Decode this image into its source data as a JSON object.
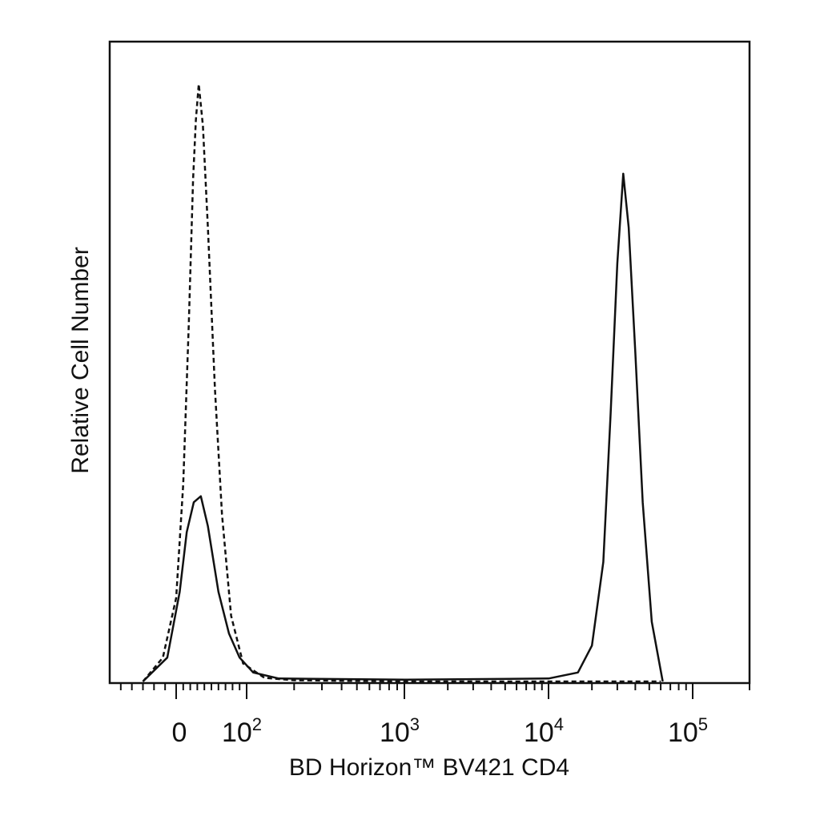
{
  "chart_data": {
    "type": "line",
    "title": "",
    "xlabel": "BD Horizon™ BV421 CD4",
    "ylabel": "Relative Cell Number",
    "x_scale": "biexponential",
    "xlim": [
      -60,
      200000
    ],
    "ylim": [
      0,
      100
    ],
    "grid": false,
    "legend": "none",
    "x_tick_labels": [
      {
        "value": 0,
        "base": "0",
        "exp": ""
      },
      {
        "value": 100,
        "base": "10",
        "exp": "2"
      },
      {
        "value": 1000,
        "base": "10",
        "exp": "3"
      },
      {
        "value": 10000,
        "base": "10",
        "exp": "4"
      },
      {
        "value": 100000,
        "base": "10",
        "exp": "5"
      }
    ],
    "series": [
      {
        "style": "dashed",
        "color": "#111111",
        "points": [
          [
            -30,
            0
          ],
          [
            -12,
            4
          ],
          [
            0,
            14
          ],
          [
            10,
            33
          ],
          [
            18,
            60
          ],
          [
            24,
            84
          ],
          [
            28,
            94
          ],
          [
            32,
            100
          ],
          [
            38,
            93
          ],
          [
            45,
            76
          ],
          [
            55,
            49
          ],
          [
            65,
            28
          ],
          [
            78,
            11
          ],
          [
            95,
            3
          ],
          [
            130,
            0.6
          ],
          [
            200,
            0.2
          ],
          [
            1000,
            0
          ],
          [
            30000,
            0
          ],
          [
            60000,
            0
          ]
        ]
      },
      {
        "style": "solid",
        "color": "#111111",
        "points": [
          [
            -30,
            0
          ],
          [
            -8,
            4
          ],
          [
            5,
            15
          ],
          [
            15,
            25
          ],
          [
            25,
            30
          ],
          [
            35,
            31
          ],
          [
            45,
            26
          ],
          [
            60,
            15
          ],
          [
            75,
            8
          ],
          [
            90,
            4
          ],
          [
            110,
            1.5
          ],
          [
            160,
            0.5
          ],
          [
            1000,
            0.3
          ],
          [
            10000,
            0.5
          ],
          [
            16000,
            1.5
          ],
          [
            20000,
            6
          ],
          [
            24000,
            20
          ],
          [
            27000,
            45
          ],
          [
            30000,
            70
          ],
          [
            33000,
            85
          ],
          [
            36000,
            76
          ],
          [
            40000,
            55
          ],
          [
            45000,
            30
          ],
          [
            52000,
            10
          ],
          [
            62000,
            0
          ]
        ]
      }
    ]
  }
}
